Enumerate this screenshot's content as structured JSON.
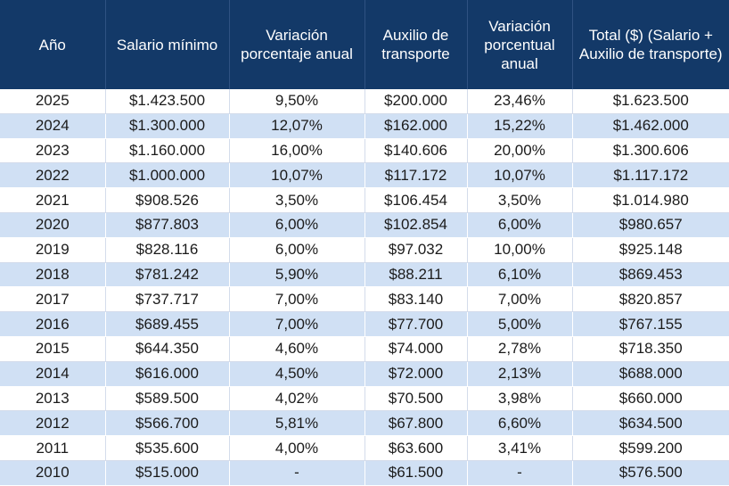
{
  "table": {
    "headers": [
      "Año",
      "Salario mínimo",
      "Variación porcentaje anual",
      "Auxilio de transporte",
      "Variación porcentual anual",
      "Total ($) (Salario + Auxilio de transporte)"
    ],
    "rows": [
      [
        "2025",
        "$1.423.500",
        "9,50%",
        "$200.000",
        "23,46%",
        "$1.623.500"
      ],
      [
        "2024",
        "$1.300.000",
        "12,07%",
        "$162.000",
        "15,22%",
        "$1.462.000"
      ],
      [
        "2023",
        "$1.160.000",
        "16,00%",
        "$140.606",
        "20,00%",
        "$1.300.606"
      ],
      [
        "2022",
        "$1.000.000",
        "10,07%",
        "$117.172",
        "10,07%",
        "$1.117.172"
      ],
      [
        "2021",
        "$908.526",
        "3,50%",
        "$106.454",
        "3,50%",
        "$1.014.980"
      ],
      [
        "2020",
        "$877.803",
        "6,00%",
        "$102.854",
        "6,00%",
        "$980.657"
      ],
      [
        "2019",
        "$828.116",
        "6,00%",
        "$97.032",
        "10,00%",
        "$925.148"
      ],
      [
        "2018",
        "$781.242",
        "5,90%",
        "$88.211",
        "6,10%",
        "$869.453"
      ],
      [
        "2017",
        "$737.717",
        "7,00%",
        "$83.140",
        "7,00%",
        "$820.857"
      ],
      [
        "2016",
        "$689.455",
        "7,00%",
        "$77.700",
        "5,00%",
        "$767.155"
      ],
      [
        "2015",
        "$644.350",
        "4,60%",
        "$74.000",
        "2,78%",
        "$718.350"
      ],
      [
        "2014",
        "$616.000",
        "4,50%",
        "$72.000",
        "2,13%",
        "$688.000"
      ],
      [
        "2013",
        "$589.500",
        "4,02%",
        "$70.500",
        "3,98%",
        "$660.000"
      ],
      [
        "2012",
        "$566.700",
        "5,81%",
        "$67.800",
        "6,60%",
        "$634.500"
      ],
      [
        "2011",
        "$535.600",
        "4,00%",
        "$63.600",
        "3,41%",
        "$599.200"
      ],
      [
        "2010",
        "$515.000",
        "-",
        "$61.500",
        "-",
        "$576.500"
      ]
    ]
  },
  "colors": {
    "header_bg": "#133968",
    "header_text": "#ffffff",
    "row_alt_bg": "#d0e0f4",
    "row_bg": "#ffffff"
  }
}
